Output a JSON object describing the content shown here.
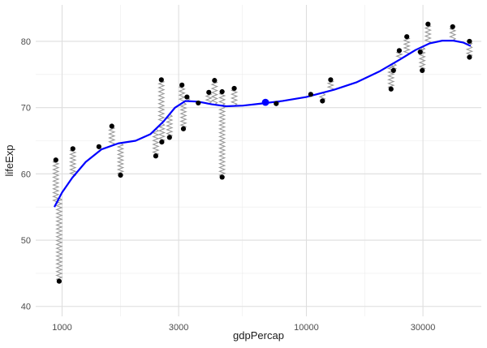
{
  "chart_data": {
    "type": "scatter",
    "xlabel": "gdpPercap",
    "ylabel": "lifeExp",
    "x_scale": "log10",
    "xlim": [
      780,
      52000
    ],
    "ylim": [
      38.5,
      85.5
    ],
    "x_ticks": [
      1000,
      3000,
      10000,
      30000
    ],
    "x_tick_labels": [
      "1000",
      "3000",
      "10000",
      "30000"
    ],
    "x_minor_ticks": [
      1732,
      5477,
      17320
    ],
    "y_ticks": [
      40,
      50,
      60,
      70,
      80
    ],
    "y_tick_labels": [
      "40",
      "50",
      "60",
      "70",
      "80"
    ],
    "y_minor_ticks": [
      45,
      55,
      65,
      75
    ],
    "grid": true,
    "colors": {
      "points": "#000000",
      "trend": "#0000ff",
      "residual": "#999999",
      "highlight": "#0000ff"
    },
    "points": [
      {
        "x": 943,
        "y": 62.1
      },
      {
        "x": 973,
        "y": 43.8
      },
      {
        "x": 1107,
        "y": 63.8
      },
      {
        "x": 1415,
        "y": 64.1
      },
      {
        "x": 1598,
        "y": 67.2
      },
      {
        "x": 1735,
        "y": 59.8
      },
      {
        "x": 2418,
        "y": 62.7
      },
      {
        "x": 2549,
        "y": 74.2
      },
      {
        "x": 2560,
        "y": 64.8
      },
      {
        "x": 2752,
        "y": 65.5
      },
      {
        "x": 3095,
        "y": 73.4
      },
      {
        "x": 3138,
        "y": 66.8
      },
      {
        "x": 3245,
        "y": 71.6
      },
      {
        "x": 3610,
        "y": 70.7
      },
      {
        "x": 3987,
        "y": 72.3
      },
      {
        "x": 4208,
        "y": 74.1
      },
      {
        "x": 4519,
        "y": 72.4
      },
      {
        "x": 4520,
        "y": 59.5
      },
      {
        "x": 5066,
        "y": 72.9
      },
      {
        "x": 7525,
        "y": 70.6
      },
      {
        "x": 10420,
        "y": 72.0
      },
      {
        "x": 11635,
        "y": 71.0
      },
      {
        "x": 12570,
        "y": 74.2
      },
      {
        "x": 22210,
        "y": 72.8
      },
      {
        "x": 22720,
        "y": 75.6
      },
      {
        "x": 24000,
        "y": 78.6
      },
      {
        "x": 25760,
        "y": 80.7
      },
      {
        "x": 29240,
        "y": 78.4
      },
      {
        "x": 29800,
        "y": 75.6
      },
      {
        "x": 31460,
        "y": 82.6
      },
      {
        "x": 39700,
        "y": 82.2
      },
      {
        "x": 46500,
        "y": 80.0
      },
      {
        "x": 46500,
        "y": 77.6
      }
    ],
    "highlight_point": {
      "x": 6800,
      "y": 70.8
    },
    "trend": {
      "x": [
        930,
        1000,
        1100,
        1250,
        1450,
        1700,
        2000,
        2300,
        2600,
        2900,
        3200,
        3600,
        4100,
        4700,
        5500,
        6500,
        8000,
        10000,
        13000,
        16000,
        20000,
        24000,
        28000,
        32000,
        36000,
        40000,
        44000,
        47000
      ],
      "y": [
        55.0,
        57.2,
        59.4,
        61.8,
        63.7,
        64.6,
        65.0,
        66.0,
        67.9,
        70.0,
        71.0,
        70.9,
        70.5,
        70.2,
        70.3,
        70.6,
        71.0,
        71.6,
        72.7,
        73.8,
        75.5,
        77.2,
        78.7,
        79.7,
        80.1,
        80.1,
        79.8,
        79.3
      ]
    }
  }
}
